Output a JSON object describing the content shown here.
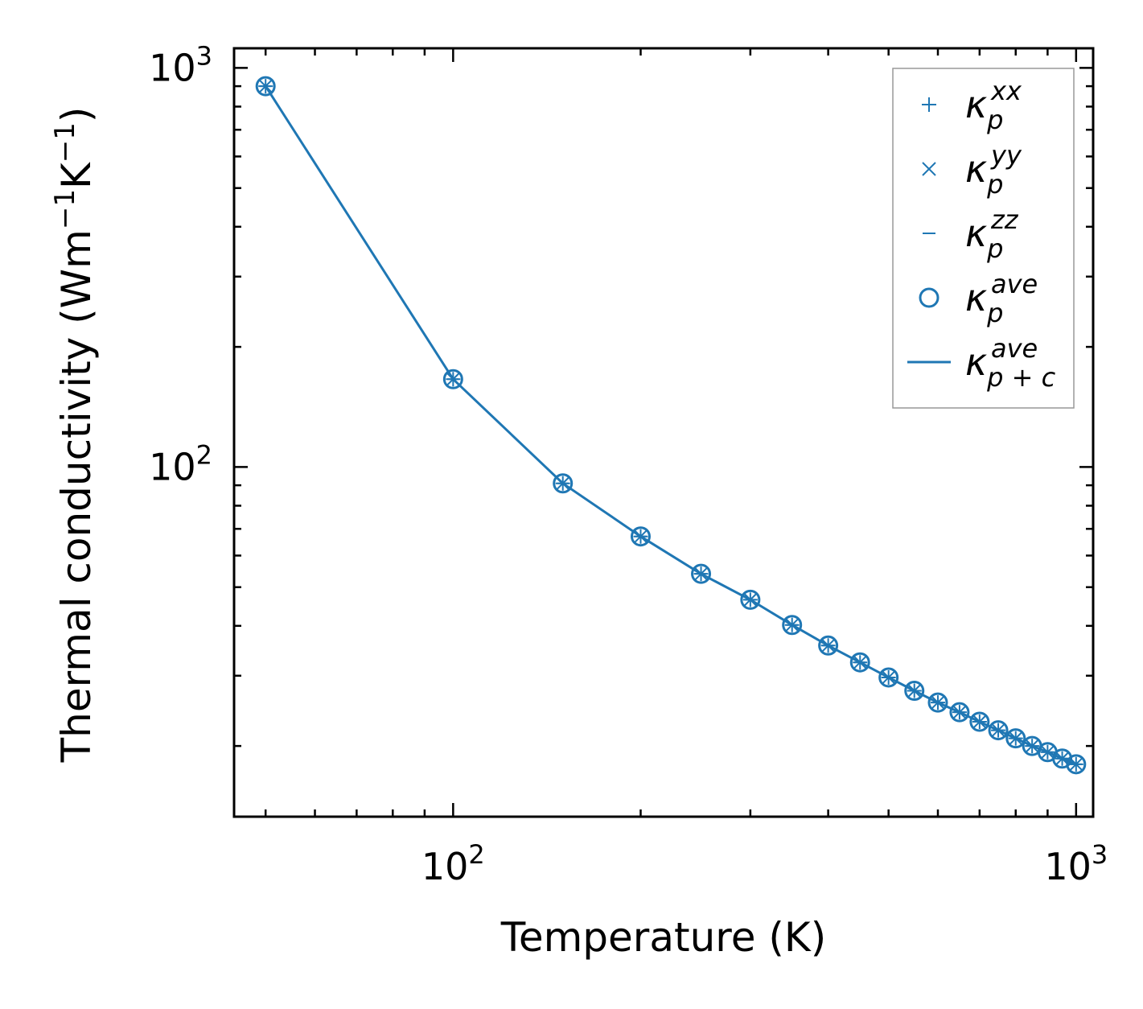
{
  "chart_data": {
    "type": "line",
    "xscale": "log",
    "yscale": "log",
    "xlim": [
      44.5,
      1065
    ],
    "ylim": [
      13.3,
      1120
    ],
    "xlabel": "Temperature (K)",
    "ylabel_main": "Thermal conductivity (Wm",
    "ylabel_exp1": "−1",
    "ylabel_mid": "K",
    "ylabel_exp2": "−1",
    "ylabel_end": ")",
    "x_ticks": [
      {
        "value": 100,
        "base": "10",
        "exp": "2"
      },
      {
        "value": 1000,
        "base": "10",
        "exp": "3"
      }
    ],
    "y_ticks": [
      {
        "value": 100,
        "base": "10",
        "exp": "2"
      },
      {
        "value": 1000,
        "base": "10",
        "exp": "3"
      }
    ],
    "legend": {
      "position": "top-right",
      "items": [
        {
          "symbol": "plus",
          "base": "κ",
          "sub": "p",
          "sup": "xx"
        },
        {
          "symbol": "x",
          "base": "κ",
          "sub": "p",
          "sup": "yy"
        },
        {
          "symbol": "dash",
          "base": "κ",
          "sub": "p",
          "sup": "zz"
        },
        {
          "symbol": "circle",
          "base": "κ",
          "sub": "p",
          "sup": "ave"
        },
        {
          "symbol": "line",
          "base": "κ",
          "sub": "p + c",
          "sup": "ave"
        }
      ]
    },
    "color": "#1f77b4",
    "x": [
      50,
      100,
      150,
      200,
      250,
      300,
      350,
      400,
      450,
      500,
      550,
      600,
      650,
      700,
      750,
      800,
      850,
      900,
      950,
      1000
    ],
    "series": [
      {
        "name": "kappa_p_xx",
        "marker": "plus",
        "values": [
          900,
          166,
          91,
          67,
          54,
          46.5,
          40.2,
          35.7,
          32.4,
          29.7,
          27.5,
          25.7,
          24.3,
          23.0,
          21.9,
          20.9,
          20.0,
          19.3,
          18.6,
          18.0
        ]
      },
      {
        "name": "kappa_p_yy",
        "marker": "x",
        "values": [
          900,
          166,
          91,
          67,
          54,
          46.5,
          40.2,
          35.7,
          32.4,
          29.7,
          27.5,
          25.7,
          24.3,
          23.0,
          21.9,
          20.9,
          20.0,
          19.3,
          18.6,
          18.0
        ]
      },
      {
        "name": "kappa_p_zz",
        "marker": "dash",
        "values": [
          900,
          166,
          91,
          67,
          54,
          46.5,
          40.2,
          35.7,
          32.4,
          29.7,
          27.5,
          25.7,
          24.3,
          23.0,
          21.9,
          20.9,
          20.0,
          19.3,
          18.6,
          18.0
        ]
      },
      {
        "name": "kappa_p_ave",
        "marker": "circle",
        "values": [
          900,
          166,
          91,
          67,
          54,
          46.5,
          40.2,
          35.7,
          32.4,
          29.7,
          27.5,
          25.7,
          24.3,
          23.0,
          21.9,
          20.9,
          20.0,
          19.3,
          18.6,
          18.0
        ]
      },
      {
        "name": "kappa_p_plus_c_ave",
        "marker": "line",
        "values": [
          900,
          166,
          91,
          67,
          54,
          46.5,
          40.2,
          35.7,
          32.4,
          29.7,
          27.5,
          25.7,
          24.3,
          23.0,
          21.9,
          20.9,
          20.0,
          19.3,
          18.6,
          18.0
        ]
      }
    ]
  }
}
